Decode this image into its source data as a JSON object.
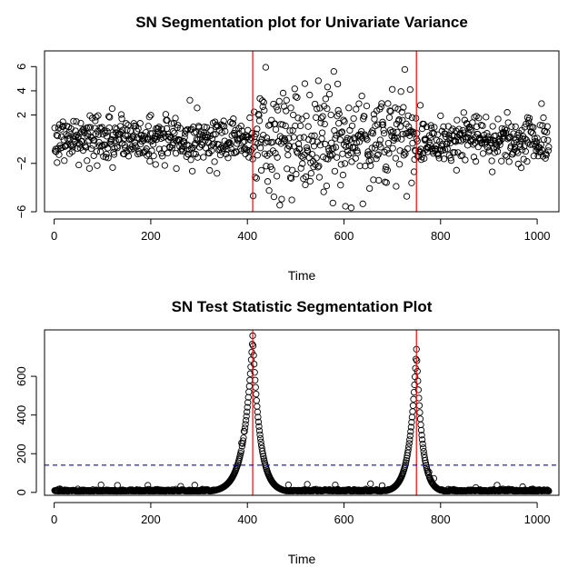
{
  "chart_data": [
    {
      "type": "scatter",
      "title": "SN Segmentation plot for Univariate Variance",
      "xlabel": "Time",
      "ylabel": "",
      "xlim": [
        -20,
        1045
      ],
      "ylim": [
        -6,
        7.3
      ],
      "x_ticks": [
        0,
        200,
        400,
        600,
        800,
        1000
      ],
      "y_ticks": [
        -6,
        -2,
        2,
        4,
        6
      ],
      "n_points": 1024,
      "segments": [
        {
          "start": 1,
          "end": 410,
          "sd": 1.0
        },
        {
          "start": 411,
          "end": 750,
          "sd": 2.2
        },
        {
          "start": 751,
          "end": 1024,
          "sd": 1.0
        }
      ],
      "change_points": [
        411,
        750
      ],
      "change_point_color": "#ff0000",
      "marker": "open-circle"
    },
    {
      "type": "scatter",
      "title": "SN Test Statistic Segmentation Plot",
      "xlabel": "Time",
      "ylabel": "",
      "xlim": [
        -20,
        1045
      ],
      "ylim": [
        -15,
        840
      ],
      "x_ticks": [
        0,
        200,
        400,
        600,
        800,
        1000
      ],
      "y_ticks": [
        0,
        200,
        400,
        600
      ],
      "n_points": 1024,
      "peaks": [
        {
          "x": 411,
          "y": 810
        },
        {
          "x": 750,
          "y": 740
        }
      ],
      "threshold": 141,
      "threshold_color": "#0000ff",
      "change_points": [
        411,
        750
      ],
      "change_point_color": "#ff0000",
      "marker": "open-circle"
    }
  ]
}
